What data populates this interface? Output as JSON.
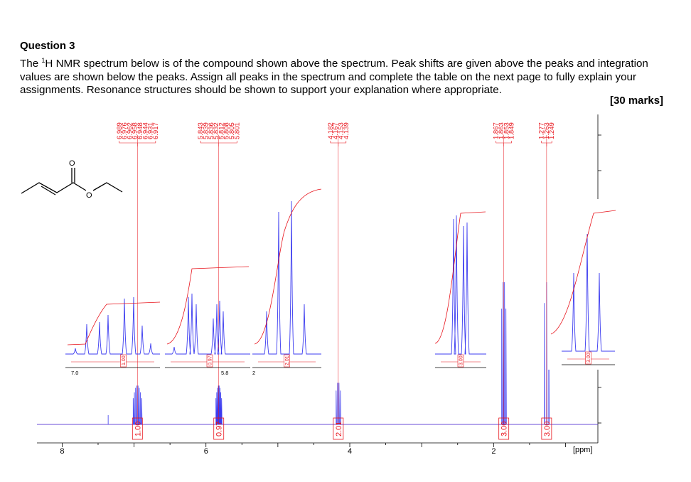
{
  "question": {
    "title": "Question 3",
    "body_before_sup": "The ",
    "sup": "1",
    "body_after_sup": "H NMR spectrum below is of the compound shown above the spectrum. Peak shifts are given above the peaks and integration values are shown below the peaks. Assign all peaks in the spectrum and complete the table on the next page to fully explain your assignments. Resonance structures should be shown to support your explanation where appropriate.",
    "marks": "[30 marks]"
  },
  "molecule": {
    "oxygen_labels": [
      "O",
      "O"
    ]
  },
  "chart_data": {
    "type": "line",
    "xlabel": "[ppm]",
    "x_axis_reversed": true,
    "xlim": [
      8.35,
      0.55
    ],
    "x_ticks": [
      {
        "value": 8,
        "label": "8"
      },
      {
        "value": 6,
        "label": "6"
      },
      {
        "value": 4,
        "label": "4"
      },
      {
        "value": 2,
        "label": "2"
      }
    ],
    "peak_groups": [
      {
        "shifts": [
          "6.989",
          "6.976",
          "6.962",
          "6.958",
          "6.948",
          "6.944",
          "6.931",
          "6.917"
        ],
        "integration": "1.00",
        "center": 6.953
      },
      {
        "shifts": [
          "5.843",
          "5.839",
          "5.836",
          "5.832",
          "5.812",
          "5.808",
          "5.805",
          "5.801"
        ],
        "integration": "0.97",
        "center": 5.822
      },
      {
        "shifts": [
          "4.182",
          "4.167",
          "4.153",
          "4.139"
        ],
        "integration": "2.01",
        "center": 4.16
      },
      {
        "shifts": [
          "1.867",
          "1.863",
          "1.853",
          "1.849"
        ],
        "integration": "3.00",
        "center": 1.858
      },
      {
        "shifts": [
          "1.277",
          "1.263",
          "1.249"
        ],
        "integration": "3.00",
        "center": 1.263
      }
    ],
    "insets": [
      {
        "range_label": "7.0",
        "integration": "1.00"
      },
      {
        "range_label": "5.8",
        "integration": "0.97"
      },
      {
        "range_label": "2",
        "integration": "2.01"
      },
      {
        "range_label": "",
        "integration": "3.00"
      },
      {
        "range_label": "",
        "integration": "3.00"
      }
    ],
    "colors": {
      "spectrum": "#3b3bf0",
      "annotation": "#e8141c",
      "axis": "#000000"
    }
  }
}
